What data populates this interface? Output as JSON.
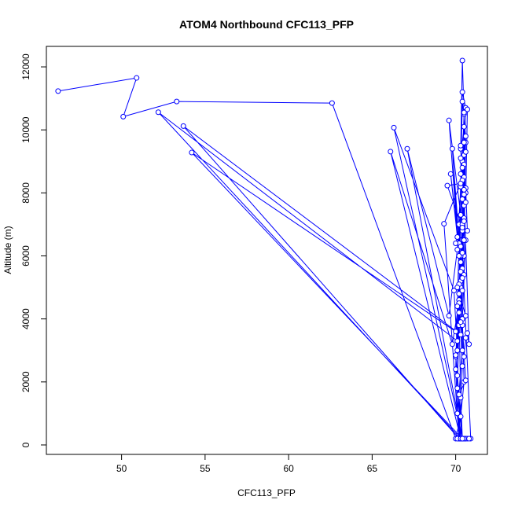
{
  "chart_data": {
    "type": "scatter",
    "title": "ATOM4 Northbound CFC113_PFP",
    "xlabel": "CFC113_PFP",
    "ylabel": "Altitude (m)",
    "xlim": [
      45.5,
      71.9
    ],
    "ylim": [
      -300,
      12650
    ],
    "xticks": [
      50,
      55,
      60,
      65,
      70
    ],
    "yticks": [
      0,
      2000,
      4000,
      6000,
      8000,
      10000,
      12000
    ],
    "grid": false,
    "legend": "none",
    "series_color": "#0000ff",
    "marker": "open-circle",
    "connected": true,
    "points": [
      [
        46.2,
        11230
      ],
      [
        50.9,
        11650
      ],
      [
        50.1,
        10420
      ],
      [
        53.3,
        10900
      ],
      [
        62.6,
        10850
      ],
      [
        70.0,
        200
      ],
      [
        70.3,
        900
      ],
      [
        70.5,
        2000
      ],
      [
        70.4,
        4000
      ],
      [
        70.6,
        6500
      ],
      [
        70.3,
        9400
      ],
      [
        70.4,
        12200
      ],
      [
        70.5,
        10500
      ],
      [
        70.4,
        9000
      ],
      [
        70.2,
        7000
      ],
      [
        70.3,
        5000
      ],
      [
        70.4,
        3000
      ],
      [
        70.1,
        1000
      ],
      [
        70.3,
        200
      ],
      [
        52.2,
        10560
      ],
      [
        70.1,
        3300
      ],
      [
        70.4,
        5600
      ],
      [
        70.5,
        8500
      ],
      [
        70.6,
        10700
      ],
      [
        70.4,
        11200
      ],
      [
        70.3,
        9500
      ],
      [
        70.5,
        7200
      ],
      [
        70.2,
        4800
      ],
      [
        70.4,
        2500
      ],
      [
        70.2,
        200
      ],
      [
        53.7,
        10120
      ],
      [
        70.3,
        3500
      ],
      [
        70.5,
        6000
      ],
      [
        70.6,
        9800
      ],
      [
        70.4,
        10900
      ],
      [
        70.3,
        8600
      ],
      [
        70.5,
        6500
      ],
      [
        70.2,
        4200
      ],
      [
        70.3,
        1500
      ],
      [
        70.4,
        200
      ],
      [
        54.2,
        9280
      ],
      [
        70.0,
        3600
      ],
      [
        70.3,
        5200
      ],
      [
        70.5,
        7600
      ],
      [
        70.4,
        9000
      ],
      [
        70.6,
        8000
      ],
      [
        70.3,
        6000
      ],
      [
        70.2,
        3800
      ],
      [
        70.1,
        1800
      ],
      [
        70.4,
        200
      ],
      [
        66.3,
        10070
      ],
      [
        69.9,
        4900
      ],
      [
        70.1,
        3000
      ],
      [
        70.3,
        5500
      ],
      [
        70.4,
        7800
      ],
      [
        70.5,
        9200
      ],
      [
        70.4,
        7000
      ],
      [
        70.2,
        4600
      ],
      [
        70.0,
        2800
      ],
      [
        70.3,
        200
      ],
      [
        66.1,
        9310
      ],
      [
        69.8,
        3200
      ],
      [
        70.2,
        4500
      ],
      [
        70.4,
        6800
      ],
      [
        70.5,
        8900
      ],
      [
        70.6,
        9600
      ],
      [
        70.3,
        7300
      ],
      [
        70.2,
        5100
      ],
      [
        70.1,
        2200
      ],
      [
        70.4,
        200
      ],
      [
        67.1,
        9400
      ],
      [
        69.6,
        4100
      ],
      [
        70.1,
        6200
      ],
      [
        70.3,
        8200
      ],
      [
        70.5,
        9600
      ],
      [
        70.4,
        8400
      ],
      [
        70.2,
        6400
      ],
      [
        70.1,
        4400
      ],
      [
        70.0,
        2400
      ],
      [
        70.2,
        200
      ],
      [
        69.3,
        7020
      ],
      [
        70.3,
        8300
      ],
      [
        69.5,
        8230
      ],
      [
        70.4,
        6900
      ],
      [
        69.6,
        10300
      ],
      [
        70.2,
        6000
      ],
      [
        69.8,
        9400
      ],
      [
        70.3,
        5800
      ],
      [
        69.7,
        8600
      ],
      [
        70.1,
        6600
      ],
      [
        70.0,
        6400
      ],
      [
        70.7,
        6800
      ],
      [
        70.6,
        8150
      ],
      [
        70.6,
        7700
      ],
      [
        70.7,
        10650
      ],
      [
        70.5,
        10550
      ],
      [
        70.5,
        7950
      ],
      [
        70.8,
        3200
      ],
      [
        70.7,
        3550
      ],
      [
        70.6,
        3400
      ],
      [
        70.5,
        2800
      ],
      [
        70.4,
        3800
      ],
      [
        70.6,
        2050
      ],
      [
        70.2,
        1600
      ],
      [
        70.0,
        2850
      ],
      [
        70.5,
        5400
      ],
      [
        70.4,
        4900
      ],
      [
        70.3,
        3900
      ],
      [
        70.6,
        4100
      ],
      [
        70.1,
        5000
      ],
      [
        70.4,
        5300
      ],
      [
        70.3,
        6300
      ],
      [
        70.5,
        7100
      ],
      [
        70.4,
        8800
      ],
      [
        70.3,
        9100
      ],
      [
        70.5,
        10100
      ],
      [
        70.6,
        9300
      ],
      [
        70.5,
        8100
      ],
      [
        70.4,
        6100
      ],
      [
        70.9,
        200
      ],
      [
        70.6,
        200
      ],
      [
        70.7,
        200
      ],
      [
        70.5,
        200
      ],
      [
        70.2,
        200
      ],
      [
        70.1,
        200
      ],
      [
        70.3,
        200
      ],
      [
        70.4,
        200
      ],
      [
        70.6,
        200
      ],
      [
        70.5,
        200
      ],
      [
        70.8,
        200
      ],
      [
        70.4,
        200
      ]
    ]
  }
}
